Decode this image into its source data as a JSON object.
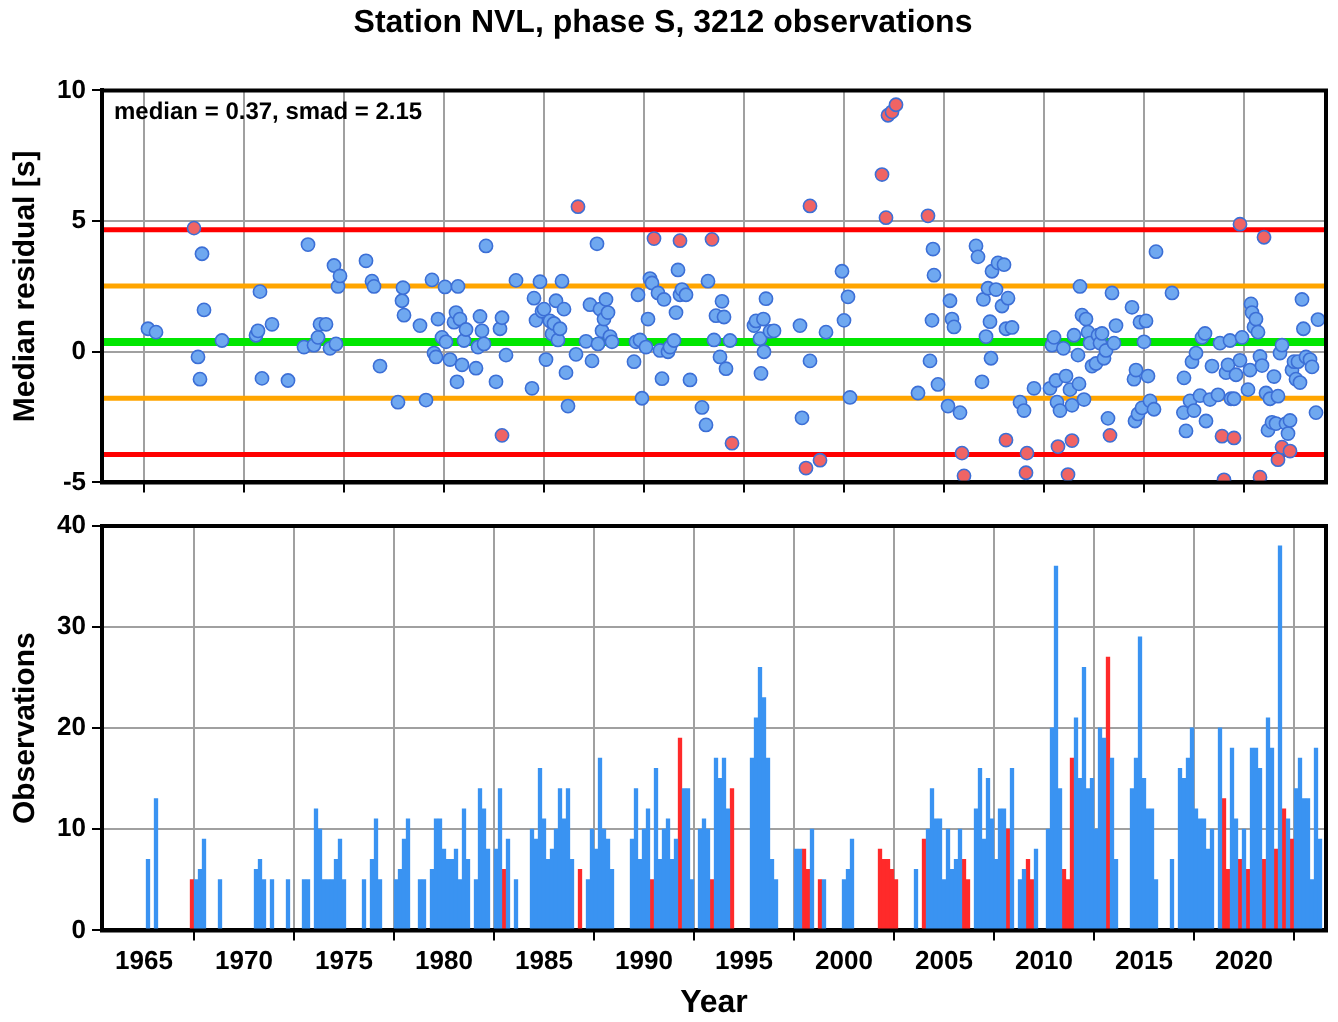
{
  "chart_data": [
    {
      "type": "scatter",
      "title": "Station NVL, phase S, 3212 observations",
      "ylabel": "Median residual [s]",
      "annotations": [
        "median = 0.37, smad = 2.15"
      ],
      "xlim": [
        1962.9,
        2024.1
      ],
      "xticks": [
        1965,
        1970,
        1975,
        1980,
        1985,
        1990,
        1995,
        2000,
        2005,
        2010,
        2015,
        2020
      ],
      "ylim": [
        -5,
        10
      ],
      "yticks": [
        -5,
        0,
        5,
        10
      ],
      "tick_labels": "y",
      "grid": true,
      "marker": "circle",
      "ref_lines": [
        {
          "axis": "y",
          "value": 0.37,
          "color": "#00e600"
        },
        {
          "axis": "y",
          "value": 2.52,
          "color": "#ffa500"
        },
        {
          "axis": "y",
          "value": -1.78,
          "color": "#ffa500"
        },
        {
          "axis": "y",
          "value": 4.67,
          "color": "#ff0000"
        },
        {
          "axis": "y",
          "value": -3.93,
          "color": "#ff0000"
        }
      ],
      "series": [
        {
          "color": "#6fa8f0",
          "x": [
            1965.2,
            1965.6,
            1967.7,
            1967.8,
            1967.9,
            1968.0,
            1968.9,
            1970.6,
            1970.7,
            1970.8,
            1970.9,
            1971.4,
            1972.2,
            1973.0,
            1973.2,
            1973.5,
            1973.7,
            1973.8,
            1974.1,
            1974.3,
            1974.5,
            1974.6,
            1974.7,
            1974.8,
            1976.1,
            1976.4,
            1976.5,
            1976.8,
            1977.7,
            1977.9,
            1977.95,
            1978.0,
            1978.8,
            1979.1,
            1979.4,
            1979.5,
            1979.6,
            1979.7,
            1979.9,
            1980.05,
            1980.1,
            1980.3,
            1980.5,
            1980.6,
            1980.65,
            1980.7,
            1980.8,
            1980.9,
            1981.0,
            1981.1,
            1981.6,
            1981.7,
            1981.8,
            1981.9,
            1982.0,
            1982.1,
            1982.6,
            1982.8,
            1982.9,
            1983.1,
            1983.6,
            1984.4,
            1984.5,
            1984.6,
            1984.8,
            1984.9,
            1985.0,
            1985.1,
            1985.3,
            1985.4,
            1985.5,
            1985.6,
            1985.7,
            1985.8,
            1985.9,
            1986.0,
            1986.1,
            1986.2,
            1986.6,
            1987.1,
            1987.3,
            1987.4,
            1987.65,
            1987.7,
            1987.8,
            1987.9,
            1988.0,
            1988.1,
            1988.2,
            1988.3,
            1988.4,
            1989.5,
            1989.6,
            1989.7,
            1989.8,
            1989.9,
            1990.1,
            1990.2,
            1990.3,
            1990.4,
            1990.7,
            1990.8,
            1990.9,
            1991.0,
            1991.2,
            1991.3,
            1991.5,
            1991.6,
            1991.7,
            1991.8,
            1991.9,
            1992.1,
            1992.3,
            1992.9,
            1993.1,
            1993.2,
            1993.5,
            1993.6,
            1993.8,
            1993.9,
            1994.0,
            1994.1,
            1994.3,
            1995.5,
            1995.6,
            1995.8,
            1995.85,
            1995.97,
            1996.0,
            1996.1,
            1996.3,
            1996.5,
            1997.8,
            1997.9,
            1998.3,
            1999.1,
            1999.9,
            2000.0,
            2000.2,
            2000.3,
            2003.7,
            2004.3,
            2004.4,
            2004.45,
            2004.5,
            2004.7,
            2005.2,
            2005.3,
            2005.4,
            2005.5,
            2005.8,
            2006.6,
            2006.7,
            2006.9,
            2006.97,
            2007.1,
            2007.2,
            2007.3,
            2007.35,
            2007.4,
            2007.6,
            2007.7,
            2007.9,
            2008.0,
            2008.1,
            2008.2,
            2008.4,
            2008.8,
            2009.0,
            2009.5,
            2010.3,
            2010.4,
            2010.5,
            2010.6,
            2010.65,
            2010.8,
            2010.97,
            2011.1,
            2011.3,
            2011.4,
            2011.5,
            2011.7,
            2011.75,
            2011.8,
            2011.9,
            2012.0,
            2012.1,
            2012.2,
            2012.3,
            2012.4,
            2012.6,
            2012.7,
            2012.8,
            2012.9,
            2013.0,
            2013.1,
            2013.2,
            2013.4,
            2013.5,
            2013.6,
            2014.4,
            2014.5,
            2014.55,
            2014.6,
            2014.7,
            2014.8,
            2014.9,
            2015.0,
            2015.1,
            2015.2,
            2015.3,
            2015.5,
            2015.6,
            2016.4,
            2016.97,
            2017.0,
            2017.1,
            2017.3,
            2017.4,
            2017.5,
            2017.6,
            2017.8,
            2017.9,
            2018.05,
            2018.1,
            2018.3,
            2018.4,
            2018.7,
            2018.8,
            2019.1,
            2019.2,
            2019.3,
            2019.35,
            2019.5,
            2019.6,
            2019.8,
            2019.9,
            2020.2,
            2020.3,
            2020.35,
            2020.4,
            2020.5,
            2020.6,
            2020.7,
            2020.8,
            2020.9,
            2021.1,
            2021.2,
            2021.3,
            2021.4,
            2021.5,
            2021.6,
            2021.7,
            2021.8,
            2021.9,
            2022.1,
            2022.2,
            2022.3,
            2022.4,
            2022.5,
            2022.6,
            2022.7,
            2022.8,
            2022.9,
            2022.97,
            2023.1,
            2023.3,
            2023.4,
            2023.6,
            2023.7
          ],
          "values": [
            0.88,
            0.75,
            -0.2,
            -1.05,
            3.75,
            1.6,
            0.43,
            0.63,
            0.8,
            2.3,
            -1.02,
            1.05,
            -1.1,
            0.18,
            4.1,
            0.25,
            0.55,
            1.05,
            1.05,
            0.13,
            3.3,
            0.3,
            2.5,
            2.9,
            3.48,
            2.7,
            2.5,
            -0.55,
            -1.93,
            1.95,
            2.45,
            1.4,
            1.0,
            -1.85,
            2.75,
            -0.05,
            -0.2,
            1.25,
            0.55,
            2.48,
            0.38,
            -0.3,
            1.13,
            1.5,
            -1.15,
            2.5,
            1.25,
            -0.5,
            0.43,
            0.85,
            -0.63,
            0.18,
            1.35,
            0.8,
            0.3,
            4.05,
            -1.15,
            0.88,
            1.3,
            -0.13,
            2.73,
            -1.4,
            2.05,
            1.2,
            2.68,
            1.55,
            1.63,
            -0.3,
            1.18,
            0.68,
            1.08,
            1.95,
            0.45,
            0.88,
            2.7,
            1.63,
            -0.8,
            -2.08,
            -0.1,
            0.4,
            1.8,
            -0.35,
            4.13,
            0.3,
            1.63,
            0.8,
            1.25,
            2.0,
            1.5,
            0.58,
            0.38,
            -0.38,
            0.38,
            2.18,
            0.45,
            -1.78,
            0.18,
            1.25,
            2.8,
            2.63,
            2.25,
            0.05,
            -1.03,
            2.0,
            0.0,
            0.18,
            0.43,
            1.5,
            3.13,
            2.18,
            2.38,
            2.18,
            -1.08,
            -2.13,
            -2.8,
            2.7,
            0.45,
            1.38,
            -0.2,
            1.93,
            1.33,
            -0.65,
            0.43,
            1.0,
            1.18,
            0.5,
            -0.83,
            1.25,
            0.0,
            2.03,
            0.78,
            0.8,
            1.0,
            -2.53,
            -0.35,
            0.75,
            3.08,
            1.2,
            2.1,
            -1.75,
            -1.58,
            -0.35,
            1.2,
            3.93,
            2.93,
            -1.25,
            -2.08,
            1.95,
            1.25,
            0.95,
            -2.33,
            4.05,
            3.63,
            -1.15,
            2.0,
            0.58,
            2.43,
            1.15,
            -0.25,
            3.08,
            2.38,
            3.4,
            1.75,
            3.33,
            0.88,
            2.05,
            0.93,
            -1.93,
            -2.25,
            -1.4,
            -1.4,
            0.25,
            0.55,
            -1.1,
            -1.93,
            -2.25,
            0.13,
            -0.93,
            -1.45,
            -2.05,
            0.63,
            -0.13,
            -1.23,
            2.5,
            1.4,
            -1.83,
            1.25,
            0.75,
            0.33,
            -0.55,
            -0.45,
            0.63,
            0.33,
            0.7,
            -0.25,
            0.05,
            -2.55,
            2.25,
            0.33,
            1.0,
            1.7,
            -1.05,
            -2.65,
            -0.7,
            -2.38,
            1.13,
            -2.15,
            0.38,
            1.18,
            -0.93,
            -1.88,
            -2.2,
            3.83,
            2.25,
            -2.33,
            -1.0,
            -3.03,
            -1.88,
            -0.38,
            -2.25,
            -0.05,
            -1.68,
            0.55,
            0.7,
            -2.65,
            -1.83,
            -0.55,
            -1.65,
            0.33,
            -0.8,
            -0.5,
            0.43,
            -1.8,
            -1.8,
            -0.88,
            -0.33,
            0.55,
            -1.45,
            -0.7,
            1.83,
            1.5,
            0.95,
            1.25,
            0.75,
            -0.18,
            -0.53,
            -1.58,
            -3.0,
            -1.8,
            -2.7,
            -0.95,
            -2.75,
            -1.7,
            -0.05,
            0.25,
            -2.75,
            -3.13,
            -2.63,
            -0.7,
            -0.38,
            -1.05,
            -0.38,
            -1.18,
            2.0,
            0.88,
            -0.2,
            -0.3,
            -0.58,
            -2.33,
            1.23
          ]
        },
        {
          "color": "#f06464",
          "x": [
            1967.5,
            1982.9,
            1986.7,
            1990.5,
            1991.8,
            1993.4,
            1994.4,
            1998.1,
            1998.3,
            1998.8,
            2001.9,
            2002.1,
            2002.2,
            2002.4,
            2002.6,
            2004.2,
            2005.9,
            2006.0,
            2008.1,
            2009.1,
            2009.15,
            2010.7,
            2011.2,
            2011.4,
            2013.3,
            2018.9,
            2019.0,
            2019.5,
            2019.8,
            2020.8,
            2021.0,
            2021.7,
            2021.9,
            2022.3
          ],
          "values": [
            4.73,
            -3.2,
            5.55,
            4.33,
            4.25,
            4.3,
            -3.5,
            -4.45,
            5.58,
            -4.15,
            6.78,
            5.13,
            9.05,
            9.18,
            9.45,
            5.2,
            -3.88,
            -4.75,
            -3.38,
            -4.63,
            -3.88,
            -3.63,
            -4.7,
            -3.4,
            -3.2,
            -3.23,
            -4.9,
            -3.3,
            4.88,
            -4.8,
            4.38,
            -4.13,
            -3.65,
            -3.8
          ]
        }
      ]
    },
    {
      "type": "bar",
      "xlabel": "Year",
      "ylabel": "Observations",
      "xlim": [
        1962.9,
        2024.1
      ],
      "xticks": [
        1965,
        1970,
        1975,
        1980,
        1985,
        1990,
        1995,
        2000,
        2005,
        2010,
        2015,
        2020
      ],
      "ylim": [
        0,
        40
      ],
      "yticks": [
        0,
        10,
        20,
        30,
        40
      ],
      "grid": true,
      "series": [
        {
          "color": "#3a93f2",
          "x": [
            1965.2,
            1965.6,
            1967.6,
            1967.8,
            1968.0,
            1968.8,
            1970.6,
            1970.8,
            1971.0,
            1971.4,
            1972.2,
            1973.0,
            1973.2,
            1973.6,
            1973.8,
            1974.0,
            1974.2,
            1974.4,
            1974.6,
            1974.8,
            1975.0,
            1976.0,
            1976.4,
            1976.6,
            1976.8,
            1977.6,
            1977.8,
            1978.0,
            1978.2,
            1978.8,
            1979.0,
            1979.4,
            1979.6,
            1979.8,
            1980.0,
            1980.2,
            1980.4,
            1980.6,
            1980.8,
            1981.0,
            1981.2,
            1981.6,
            1981.8,
            1982.0,
            1982.2,
            1982.6,
            1982.8,
            1983.2,
            1983.6,
            1984.4,
            1984.6,
            1984.8,
            1985.0,
            1985.2,
            1985.4,
            1985.6,
            1985.8,
            1986.0,
            1986.2,
            1986.4,
            1987.2,
            1987.4,
            1987.6,
            1987.8,
            1988.0,
            1988.2,
            1988.4,
            1989.4,
            1989.6,
            1989.8,
            1990.0,
            1990.2,
            1990.6,
            1990.8,
            1991.0,
            1991.2,
            1991.4,
            1991.6,
            1992.0,
            1992.2,
            1992.4,
            1992.8,
            1993.0,
            1993.2,
            1993.6,
            1993.8,
            1994.0,
            1994.2,
            1995.4,
            1995.6,
            1995.8,
            1996.0,
            1996.2,
            1996.4,
            1996.6,
            1997.6,
            1997.8,
            1998.4,
            1999.0,
            2000.0,
            2000.2,
            2000.4,
            2003.6,
            2004.2,
            2004.4,
            2004.6,
            2004.8,
            2005.0,
            2005.2,
            2005.4,
            2005.6,
            2005.8,
            2006.6,
            2006.8,
            2007.0,
            2007.2,
            2007.4,
            2007.6,
            2007.8,
            2008.0,
            2008.4,
            2008.8,
            2009.0,
            2009.6,
            2010.2,
            2010.4,
            2010.6,
            2010.8,
            2011.6,
            2011.8,
            2012.0,
            2012.2,
            2012.4,
            2012.6,
            2012.8,
            2013.0,
            2013.4,
            2013.6,
            2014.4,
            2014.6,
            2014.8,
            2015.0,
            2015.2,
            2015.4,
            2015.6,
            2016.4,
            2016.8,
            2017.0,
            2017.2,
            2017.4,
            2017.6,
            2017.8,
            2018.0,
            2018.2,
            2018.4,
            2018.8,
            2019.4,
            2019.6,
            2020.0,
            2020.4,
            2020.6,
            2020.8,
            2021.2,
            2021.4,
            2021.8,
            2022.2,
            2022.6,
            2022.8,
            2023.0,
            2023.2,
            2023.4,
            2023.6,
            2023.8
          ],
          "values": [
            7,
            13,
            5,
            6,
            9,
            5,
            6,
            7,
            5,
            5,
            5,
            5,
            5,
            12,
            10,
            5,
            5,
            5,
            7,
            9,
            5,
            5,
            7,
            11,
            5,
            5,
            6,
            9,
            11,
            5,
            5,
            6,
            11,
            11,
            8,
            7,
            7,
            8,
            5,
            12,
            7,
            5,
            14,
            12,
            8,
            8,
            14,
            9,
            5,
            10,
            9,
            16,
            11,
            7,
            8,
            10,
            14,
            11,
            14,
            7,
            5,
            10,
            8,
            17,
            10,
            9,
            6,
            9,
            14,
            7,
            10,
            12,
            16,
            7,
            10,
            11,
            7,
            9,
            14,
            14,
            5,
            10,
            11,
            10,
            17,
            15,
            17,
            12,
            17,
            21,
            26,
            23,
            17,
            7,
            5,
            8,
            8,
            10,
            5,
            5,
            6,
            9,
            6,
            10,
            14,
            11,
            11,
            5,
            10,
            6,
            7,
            10,
            12,
            16,
            9,
            15,
            11,
            7,
            12,
            12,
            16,
            5,
            6,
            8,
            10,
            20,
            36,
            14,
            21,
            15,
            26,
            14,
            15,
            10,
            20,
            19,
            17,
            7,
            14,
            17,
            29,
            15,
            12,
            12,
            5,
            7,
            16,
            15,
            17,
            20,
            12,
            11,
            11,
            8,
            10,
            20,
            18,
            11,
            10,
            18,
            18,
            16,
            21,
            18,
            38,
            11,
            14,
            17,
            13,
            13,
            5,
            18,
            9
          ]
        },
        {
          "color": "#ff2a2a",
          "x": [
            1967.4,
            1983.0,
            1986.8,
            1990.4,
            1991.8,
            1993.4,
            1994.4,
            1998.0,
            1998.2,
            1998.8,
            2001.8,
            2002.0,
            2002.2,
            2002.4,
            2002.6,
            2004.0,
            2006.0,
            2006.2,
            2008.2,
            2009.2,
            2009.4,
            2011.0,
            2011.2,
            2011.4,
            2013.2,
            2019.0,
            2019.2,
            2019.8,
            2020.2,
            2021.0,
            2021.6,
            2022.0,
            2022.4
          ],
          "values": [
            5,
            6,
            6,
            5,
            19,
            5,
            14,
            8,
            6,
            5,
            8,
            7,
            7,
            6,
            5,
            9,
            7,
            5,
            10,
            7,
            5,
            6,
            5,
            17,
            27,
            13,
            6,
            7,
            6,
            7,
            8,
            12,
            9
          ]
        }
      ]
    }
  ]
}
